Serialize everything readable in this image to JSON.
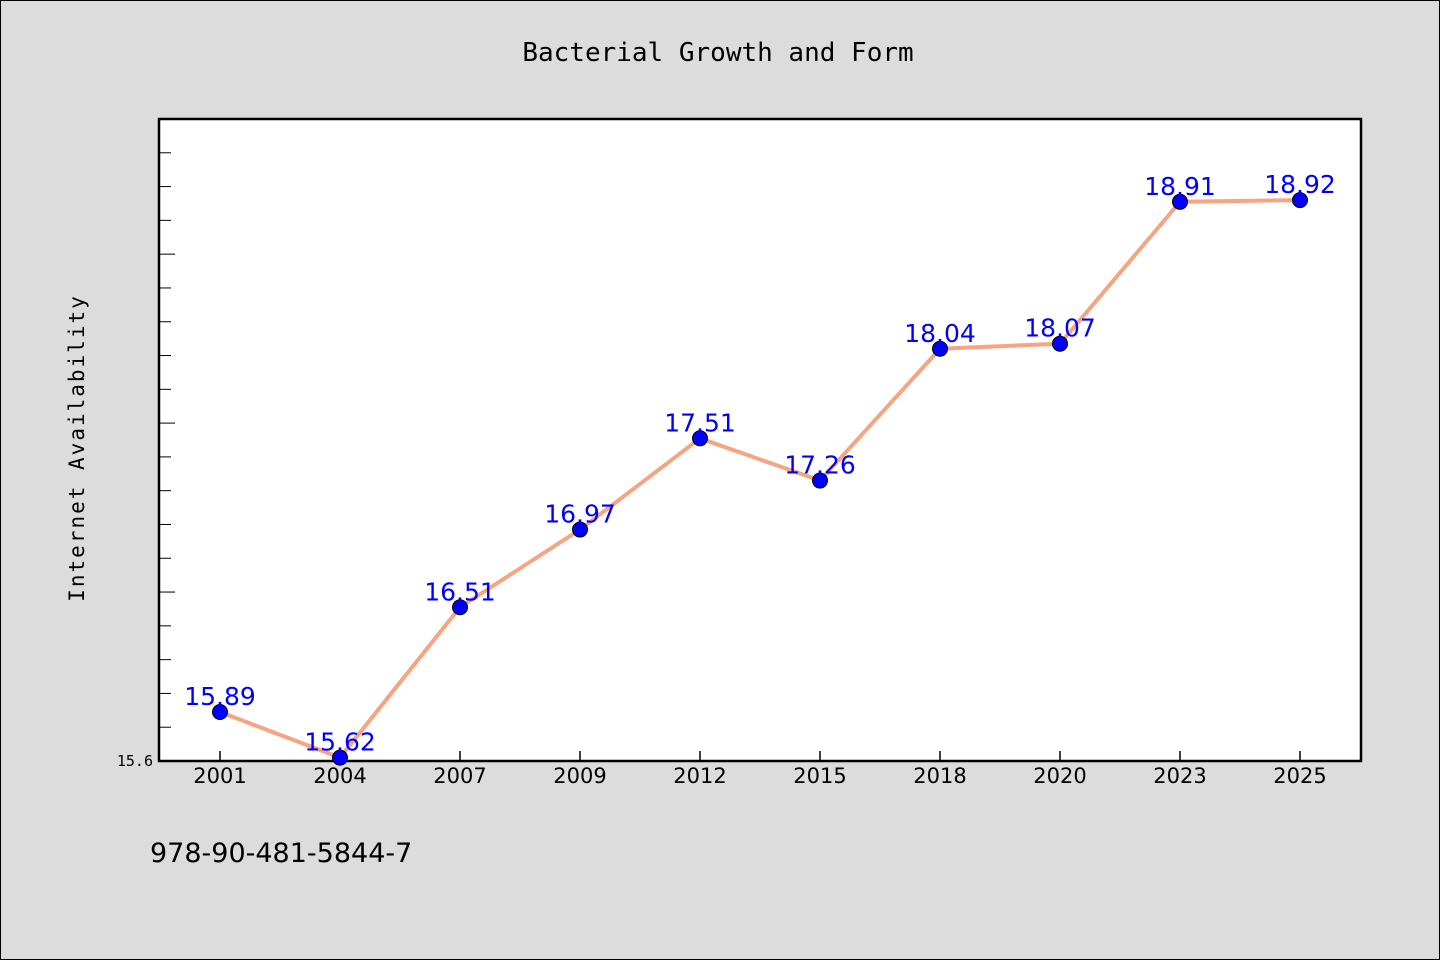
{
  "colors": {
    "background": "#dcdcdc",
    "plot_background": "#ffffff",
    "line": "#f4a582",
    "marker": "#0000ff",
    "label": "#0000ff"
  },
  "footer_text": "978-90-481-5844-7",
  "chart_data": {
    "type": "line",
    "title": "Bacterial Growth and Form",
    "xlabel": "",
    "ylabel": "Internet Availability",
    "categories": [
      "2001",
      "2004",
      "2007",
      "2009",
      "2012",
      "2015",
      "2018",
      "2020",
      "2023",
      "2025"
    ],
    "series": [
      {
        "values": [
          15.89,
          15.62,
          16.51,
          16.97,
          17.51,
          17.26,
          18.04,
          18.07,
          18.91,
          18.92
        ]
      }
    ],
    "y_tick_labels": [
      "15.6"
    ],
    "ylim": [
      15.6,
      19.4
    ],
    "grid": false,
    "legend": "none"
  }
}
